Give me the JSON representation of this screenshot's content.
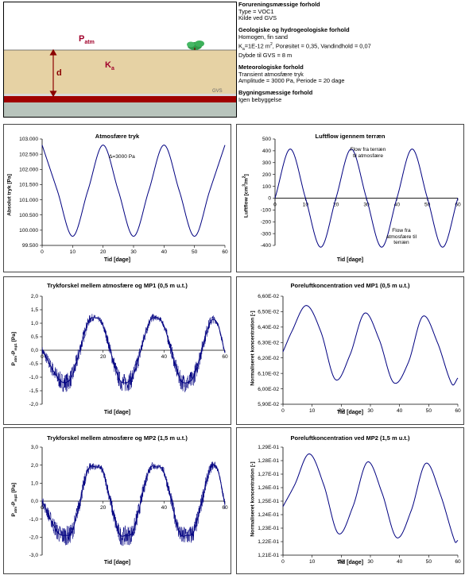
{
  "schematic": {
    "patm_label": "P",
    "patm_sub": "atm",
    "ka_label": "K",
    "ka_sub": "a",
    "d_label": "d",
    "gvs_label": "GVS",
    "colors": {
      "air": "#ffffff",
      "soil": "#e6d2a4",
      "water": "#a00000",
      "groundwater": "#b8c4bc",
      "arrow": "#8b0000"
    }
  },
  "info": {
    "pollution": {
      "heading": "Forureningsmæssige forhold",
      "lines": [
        "Type = VOC1",
        "Kilde ved GVS"
      ]
    },
    "geology": {
      "heading": "Geologiske og hydrogeologiske forhold",
      "line1": "Homogen, fin sand",
      "ka_prefix": "K",
      "ka_sub": "a",
      "ka_rest": "=1E-12 m",
      "ka_sup": "2",
      "ka_tail": ", Porøsitet = 0,35, Vandindhold = 0,07",
      "line3": "Dybde til GVS = 8 m"
    },
    "meteorology": {
      "heading": "Meteorologiske forhold",
      "lines": [
        "Transient atmosfære tryk",
        "Amplitude = 3000 Pa, Periode = 20 dage"
      ]
    },
    "building": {
      "heading": "Bygningsmæssige forhold",
      "lines": [
        "Igen bebyggelse"
      ]
    }
  },
  "chart_data": [
    {
      "type": "line",
      "title": "Atmosfære tryk",
      "xlabel": "Tid [dage]",
      "ylabel": "Absolut tryk [Pa]",
      "xlim": [
        0,
        60
      ],
      "ylim": [
        99500,
        103000
      ],
      "xticks": [
        "0",
        "10",
        "20",
        "30",
        "40",
        "50",
        "60"
      ],
      "yticks": [
        "99.500",
        "100.000",
        "100.500",
        "101.000",
        "101.500",
        "102.000",
        "102.500",
        "103.000"
      ],
      "annotation": "Δ=3000 Pa",
      "x": [
        0,
        5,
        10,
        15,
        20,
        25,
        30,
        35,
        40,
        45,
        50,
        55,
        60
      ],
      "y": [
        102800,
        101300,
        99800,
        101300,
        102800,
        101300,
        99800,
        101300,
        102800,
        101300,
        99800,
        101300,
        102800
      ],
      "series": [
        {
          "values": [
            102800,
            101300,
            99800,
            101300,
            102800,
            101300,
            99800,
            101300,
            102800,
            101300,
            99800,
            101300,
            102800
          ]
        }
      ],
      "color": "#000080"
    },
    {
      "type": "line",
      "title": "Luftflow igennem terræn",
      "xlabel": "Tid [dage]",
      "ylabel": "Luftflow [cm³/m²]",
      "xlim": [
        0,
        60
      ],
      "ylim": [
        -400,
        500
      ],
      "xticks": [
        "0",
        "10",
        "20",
        "30",
        "40",
        "50",
        "60"
      ],
      "yticks": [
        "-400",
        "-300",
        "-200",
        "-100",
        "0",
        "100",
        "200",
        "300",
        "400",
        "500"
      ],
      "annotations": [
        "Flow fra terræn til atmosfære",
        "Flow fra atmosfære til terræn"
      ],
      "x": [
        0,
        5,
        10,
        15,
        20,
        25,
        30,
        35,
        40,
        45,
        50,
        55,
        60
      ],
      "y": [
        0,
        415,
        0,
        -415,
        0,
        415,
        0,
        -415,
        0,
        415,
        0,
        -415,
        0
      ],
      "series": [
        {
          "values": [
            0,
            415,
            0,
            -415,
            0,
            415,
            0,
            -415,
            0,
            415,
            0,
            -415,
            0
          ]
        }
      ],
      "color": "#000080"
    },
    {
      "type": "line",
      "title": "Trykforskel mellem atmosfære og MP1 (0,5 m u.t.)",
      "xlabel": "Tid [dage]",
      "ylabel": "P atm-P mp1 [Pa]",
      "xlim": [
        0,
        60
      ],
      "ylim": [
        -2,
        2
      ],
      "xticks": [
        "0",
        "20",
        "40",
        "60"
      ],
      "yticks": [
        "-2,0",
        "-1,5",
        "-1,0",
        "-0,5",
        "0,0",
        "0,5",
        "1,0",
        "1,5",
        "2,0"
      ],
      "x": [
        0,
        5,
        7.5,
        10,
        15,
        17.5,
        20,
        25,
        27.5,
        30,
        35,
        37.5,
        40,
        45,
        47.5,
        50,
        55,
        57.5,
        60
      ],
      "y": [
        0,
        -1.0,
        -1.2,
        -0.9,
        1.0,
        1.2,
        0.9,
        -1.0,
        -1.2,
        -0.9,
        1.0,
        1.2,
        0.9,
        -1.0,
        -1.2,
        -0.9,
        1.0,
        1.0,
        -0.1
      ],
      "series": [
        {
          "values": [
            0,
            -1.0,
            -1.2,
            -0.9,
            1.0,
            1.2,
            0.9,
            -1.0,
            -1.2,
            -0.9,
            1.0,
            1.2,
            0.9,
            -1.0,
            -1.2,
            -0.9,
            1.0,
            1.0,
            -0.1
          ]
        }
      ],
      "noise_amplitude": 0.35,
      "color": "#000080"
    },
    {
      "type": "line",
      "title": "Poreluftkoncentration ved MP1 (0,5 m u.t.)",
      "xlabel": "Tid [dage]",
      "ylabel": "Normaliseret koncentration [-]",
      "xlim": [
        0,
        60
      ],
      "ylim": [
        0.059,
        0.066
      ],
      "xticks": [
        "0",
        "10",
        "20",
        "30",
        "40",
        "50",
        "60"
      ],
      "yticks": [
        "5,90E-02",
        "6,00E-02",
        "6,10E-02",
        "6,20E-02",
        "6,30E-02",
        "6,40E-02",
        "6,50E-02",
        "6,60E-02"
      ],
      "x": [
        0,
        3,
        8,
        13,
        18,
        23,
        28,
        33,
        38,
        43,
        48,
        53,
        58,
        60
      ],
      "y": [
        0.0624,
        0.0637,
        0.0654,
        0.0637,
        0.0606,
        0.0622,
        0.0649,
        0.0632,
        0.0604,
        0.0617,
        0.0647,
        0.063,
        0.0603,
        0.0607
      ],
      "series": [
        {
          "values": [
            0.0624,
            0.0637,
            0.0654,
            0.0637,
            0.0606,
            0.0622,
            0.0649,
            0.0632,
            0.0604,
            0.0617,
            0.0647,
            0.063,
            0.0603,
            0.0607
          ]
        }
      ],
      "color": "#000080"
    },
    {
      "type": "line",
      "title": "Trykforskel mellem atmosfære og MP2 (1,5 m u.t.)",
      "xlabel": "Tid [dage]",
      "ylabel": "P atm-P mp2 [Pa]",
      "xlim": [
        0,
        60
      ],
      "ylim": [
        -3,
        3
      ],
      "xticks": [
        "0",
        "20",
        "40",
        "60"
      ],
      "yticks": [
        "-3,0",
        "-2,0",
        "-1,0",
        "0,0",
        "1,0",
        "2,0",
        "3,0"
      ],
      "x": [
        0,
        5,
        7.5,
        10,
        15,
        17.5,
        20,
        25,
        27.5,
        30,
        35,
        37.5,
        40,
        45,
        47.5,
        50,
        55,
        57.5,
        60
      ],
      "y": [
        0,
        -1.7,
        -1.9,
        -1.6,
        1.7,
        1.9,
        1.6,
        -1.7,
        -1.9,
        -1.6,
        1.7,
        1.9,
        1.6,
        -1.7,
        -1.9,
        -1.6,
        1.7,
        1.8,
        -0.2
      ],
      "series": [
        {
          "values": [
            0,
            -1.7,
            -1.9,
            -1.6,
            1.7,
            1.9,
            1.6,
            -1.7,
            -1.9,
            -1.6,
            1.7,
            1.9,
            1.6,
            -1.7,
            -1.9,
            -1.6,
            1.7,
            1.8,
            -0.2
          ]
        }
      ],
      "noise_amplitude": 0.55,
      "color": "#000080"
    },
    {
      "type": "line",
      "title": "Poreluftkoncentration ved MP2 (1,5 m u.t.)",
      "xlabel": "Tid [dage]",
      "ylabel": "Normaliseret koncentration [-]",
      "xlim": [
        0,
        60
      ],
      "ylim": [
        0.121,
        0.129
      ],
      "xticks": [
        "0",
        "10",
        "20",
        "30",
        "40",
        "50",
        "60"
      ],
      "yticks": [
        "1,21E-01",
        "1,22E-01",
        "1,23E-01",
        "1,24E-01",
        "1,25E-01",
        "1,26E-01",
        "1,27E-01",
        "1,28E-01",
        "1,29E-01"
      ],
      "x": [
        0,
        4,
        9,
        14,
        19,
        24,
        29,
        34,
        39,
        44,
        49,
        54,
        59,
        60
      ],
      "y": [
        0.1246,
        0.1262,
        0.1285,
        0.1262,
        0.1226,
        0.1246,
        0.1279,
        0.1256,
        0.1223,
        0.1243,
        0.1278,
        0.1255,
        0.122,
        0.1221
      ],
      "series": [
        {
          "values": [
            0.1246,
            0.1262,
            0.1285,
            0.1262,
            0.1226,
            0.1246,
            0.1279,
            0.1256,
            0.1223,
            0.1243,
            0.1278,
            0.1255,
            0.122,
            0.1221
          ]
        }
      ],
      "color": "#000080"
    }
  ]
}
